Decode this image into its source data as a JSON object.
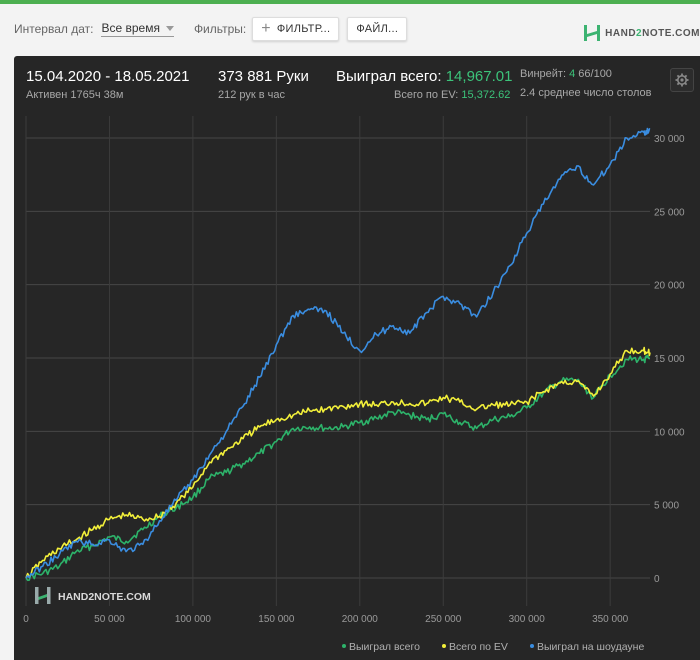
{
  "filters": {
    "date_interval_label": "Интервал дат:",
    "date_interval_value": "Все время",
    "filters_label": "Фильтры:",
    "filter_button": "ФИЛЬТР...",
    "file_button": "ФАЙЛ..."
  },
  "brand": {
    "logo_text_a": "HAND",
    "logo_text_b": "2",
    "logo_text_c": "NOTE.COM"
  },
  "summary": {
    "date_range": "15.04.2020 - 18.05.2021",
    "active": "Активен 1765ч 38м",
    "hands": "373 881 Руки",
    "hands_rate": "212 рук в час",
    "won_total_label": "Выиграл всего:",
    "won_total_value": "14,967.01",
    "ev_total_label": "Всего по EV:",
    "ev_total_value": "15,372.62",
    "winrate_label": "Винрейт:",
    "winrate_value": "4",
    "winrate_unit": "66/100",
    "tables_text": "2.4 среднее число столов"
  },
  "colors": {
    "won": "#2db36a",
    "ev": "#f2ef3a",
    "showdown": "#3a8de0",
    "accent": "#3cc37a"
  },
  "chart_data": {
    "type": "line",
    "xlim": [
      0,
      373881
    ],
    "ylim": [
      -1500,
      31500
    ],
    "x_ticks": [
      0,
      50000,
      100000,
      150000,
      200000,
      250000,
      300000,
      350000
    ],
    "x_tick_labels": [
      "0",
      "50 000",
      "100 000",
      "150 000",
      "200 000",
      "250 000",
      "300 000",
      "350 000"
    ],
    "y_ticks": [
      0,
      5000,
      10000,
      15000,
      20000,
      25000,
      30000
    ],
    "y_tick_labels": [
      "0",
      "5 000",
      "10 000",
      "15 000",
      "20 000",
      "25 000",
      "30 000"
    ],
    "grid": true,
    "legend_position": "bottom-right",
    "watermark": "HAND2NOTE.COM",
    "x": [
      0,
      10000,
      20000,
      30000,
      40000,
      50000,
      60000,
      70000,
      80000,
      90000,
      100000,
      110000,
      120000,
      130000,
      140000,
      150000,
      160000,
      170000,
      180000,
      190000,
      200000,
      210000,
      220000,
      230000,
      240000,
      250000,
      260000,
      270000,
      280000,
      290000,
      300000,
      310000,
      320000,
      330000,
      340000,
      350000,
      360000,
      370000,
      373881
    ],
    "series": [
      {
        "name": "Выиграл всего",
        "color": "#2db36a",
        "values": [
          0,
          300,
          800,
          1800,
          2200,
          2800,
          2500,
          3300,
          4200,
          4800,
          5500,
          6800,
          7200,
          7800,
          8500,
          9300,
          10200,
          10300,
          10200,
          10300,
          10600,
          10900,
          11300,
          11100,
          10800,
          11200,
          10600,
          10200,
          10800,
          11000,
          11600,
          12600,
          13400,
          13500,
          12300,
          13800,
          14900,
          14900,
          14967
        ]
      },
      {
        "name": "Всего по EV",
        "color": "#f2ef3a",
        "values": [
          0,
          1200,
          2000,
          2600,
          3300,
          4000,
          4300,
          4000,
          4200,
          5100,
          6200,
          7900,
          8700,
          9500,
          10300,
          10800,
          11100,
          11400,
          11500,
          11700,
          11900,
          11800,
          12000,
          11900,
          11900,
          12300,
          12000,
          11500,
          11800,
          11800,
          12000,
          12700,
          13300,
          13400,
          12400,
          13900,
          15500,
          15500,
          15372
        ]
      },
      {
        "name": "Выиграл на шоудауне",
        "color": "#3a8de0",
        "values": [
          0,
          800,
          1600,
          2500,
          2300,
          2600,
          1800,
          2300,
          3900,
          5300,
          6700,
          8400,
          10000,
          11700,
          13700,
          15900,
          17900,
          18300,
          18200,
          16700,
          15500,
          16600,
          17200,
          16700,
          18100,
          19200,
          18700,
          17800,
          19500,
          21300,
          23500,
          25500,
          27200,
          28100,
          26800,
          28200,
          30000,
          30400,
          30600
        ]
      }
    ]
  }
}
